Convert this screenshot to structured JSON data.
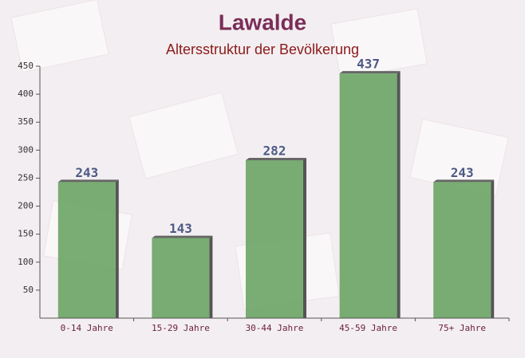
{
  "chart_data": {
    "type": "bar",
    "title": "Lawalde",
    "subtitle": "Altersstruktur der Bevölkerung",
    "categories": [
      "0-14 Jahre",
      "15-29 Jahre",
      "30-44 Jahre",
      "45-59 Jahre",
      "75+ Jahre"
    ],
    "values": [
      243,
      143,
      282,
      437,
      243
    ],
    "color": "#6aa464",
    "ylim": [
      0,
      450
    ],
    "yticks": [
      50,
      100,
      150,
      200,
      250,
      300,
      350,
      400,
      450
    ]
  }
}
